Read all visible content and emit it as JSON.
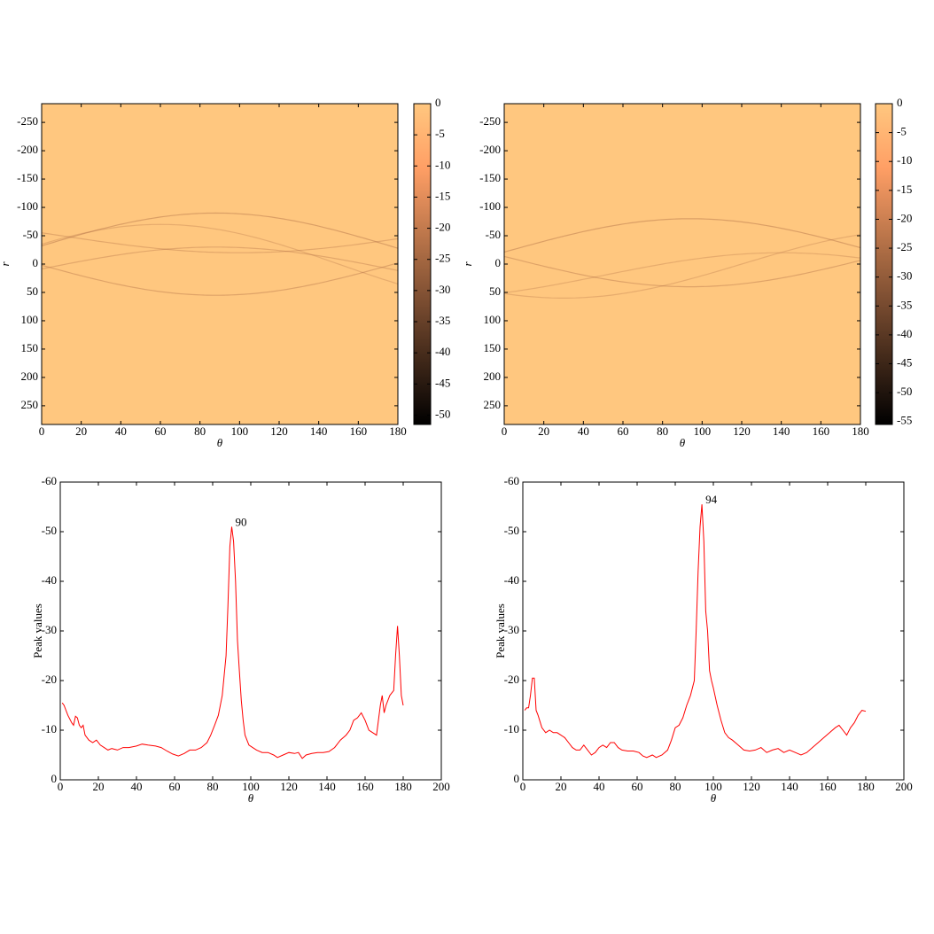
{
  "chart_data": [
    {
      "type": "heatmap",
      "xlabel": "θ",
      "ylabel": "r",
      "colormap": "copper",
      "xlim": [
        0,
        180
      ],
      "xticks": [
        0,
        20,
        40,
        60,
        80,
        100,
        120,
        140,
        160,
        180
      ],
      "ylim": [
        283,
        -283
      ],
      "yticks": [
        -250,
        -200,
        -150,
        -100,
        -50,
        0,
        50,
        100,
        150,
        200,
        250
      ],
      "clim": [
        -51.5,
        0
      ],
      "cticks": [
        0,
        -5,
        -10,
        -15,
        -20,
        -25,
        -30,
        -35,
        -40,
        -45,
        -50
      ]
    },
    {
      "type": "heatmap",
      "xlabel": "θ",
      "ylabel": "r",
      "colormap": "copper",
      "xlim": [
        0,
        180
      ],
      "xticks": [
        0,
        20,
        40,
        60,
        80,
        100,
        120,
        140,
        160,
        180
      ],
      "ylim": [
        283,
        -283
      ],
      "yticks": [
        -250,
        -200,
        -150,
        -100,
        -50,
        0,
        50,
        100,
        150,
        200,
        250
      ],
      "clim": [
        -55.5,
        0
      ],
      "cticks": [
        0,
        -5,
        -10,
        -15,
        -20,
        -25,
        -30,
        -35,
        -40,
        -45,
        -50,
        -55
      ]
    },
    {
      "type": "line",
      "xlabel": "θ",
      "ylabel": "Peak values",
      "xlim": [
        0,
        200
      ],
      "xticks": [
        0,
        20,
        40,
        60,
        80,
        100,
        120,
        140,
        160,
        180,
        200
      ],
      "ylim": [
        0,
        -60
      ],
      "yticks": [
        0,
        -10,
        -20,
        -30,
        -40,
        -50,
        -60
      ],
      "x": [
        1,
        2,
        4,
        6,
        7,
        8,
        9,
        10,
        11,
        12,
        13,
        15,
        17,
        19,
        21,
        23,
        25,
        27,
        30,
        33,
        36,
        40,
        43,
        46,
        50,
        53,
        56,
        59,
        62,
        65,
        68,
        71,
        74,
        77,
        79,
        81,
        83,
        85,
        87,
        88,
        89,
        90,
        91,
        92,
        93,
        94,
        95,
        96,
        97,
        99,
        101,
        103,
        106,
        109,
        112,
        114,
        117,
        120,
        123,
        125,
        127,
        129,
        132,
        135,
        138,
        141,
        144,
        147,
        150,
        152,
        154,
        156,
        158,
        160,
        162,
        164,
        166,
        168,
        169,
        170,
        171,
        173,
        175,
        176,
        177,
        178,
        179,
        180
      ],
      "series": [
        {
          "color": "#ff0000",
          "values": [
            -15.5,
            -15,
            -13,
            -11.5,
            -11,
            -12.8,
            -12.5,
            -11,
            -10.5,
            -11,
            -9,
            -8,
            -7.5,
            -8,
            -7,
            -6.5,
            -6,
            -6.3,
            -6,
            -6.5,
            -6.5,
            -6.8,
            -7.2,
            -7,
            -6.8,
            -6.5,
            -5.8,
            -5.2,
            -4.8,
            -5.3,
            -6,
            -6,
            -6.5,
            -7.5,
            -9,
            -11,
            -13,
            -17,
            -25,
            -35,
            -47,
            -51,
            -48,
            -40,
            -28,
            -22,
            -16,
            -12,
            -9,
            -7,
            -6.5,
            -6,
            -5.5,
            -5.5,
            -5,
            -4.5,
            -5,
            -5.5,
            -5.3,
            -5.5,
            -4.3,
            -5,
            -5.3,
            -5.5,
            -5.5,
            -5.7,
            -6.5,
            -8,
            -9,
            -10,
            -12,
            -12.5,
            -13.5,
            -12,
            -10,
            -9.5,
            -9,
            -15,
            -17,
            -13.5,
            -15,
            -17,
            -18,
            -25,
            -31,
            -25,
            -17,
            -15
          ]
        }
      ],
      "annotation": {
        "label": "90",
        "x": 90,
        "y": -51
      }
    },
    {
      "type": "line",
      "xlabel": "θ",
      "ylabel": "Peak values",
      "xlim": [
        0,
        200
      ],
      "xticks": [
        0,
        20,
        40,
        60,
        80,
        100,
        120,
        140,
        160,
        180,
        200
      ],
      "ylim": [
        0,
        -60
      ],
      "yticks": [
        0,
        -10,
        -20,
        -30,
        -40,
        -50,
        -60
      ],
      "x": [
        1,
        2,
        3,
        4,
        5,
        6,
        7,
        8,
        10,
        12,
        14,
        16,
        18,
        20,
        22,
        24,
        26,
        28,
        30,
        32,
        34,
        36,
        38,
        40,
        42,
        44,
        46,
        48,
        50,
        52,
        55,
        58,
        61,
        63,
        65,
        68,
        70,
        73,
        76,
        78,
        80,
        82,
        84,
        86,
        88,
        90,
        91,
        92,
        93,
        94,
        95,
        96,
        97,
        98,
        99,
        100,
        102,
        104,
        106,
        108,
        110,
        113,
        116,
        119,
        122,
        125,
        128,
        131,
        134,
        137,
        140,
        143,
        146,
        149,
        152,
        155,
        158,
        161,
        164,
        166,
        168,
        170,
        172,
        174,
        176,
        178,
        180
      ],
      "series": [
        {
          "color": "#ff0000",
          "values": [
            -14,
            -14.5,
            -14.5,
            -17,
            -20.5,
            -20.5,
            -14,
            -13,
            -10.5,
            -9.5,
            -10,
            -9.5,
            -9.5,
            -9,
            -8.5,
            -7.5,
            -6.5,
            -6,
            -6,
            -7,
            -6,
            -5,
            -5.5,
            -6.5,
            -7,
            -6.5,
            -7.5,
            -7.5,
            -6.5,
            -6,
            -5.8,
            -5.8,
            -5.5,
            -4.8,
            -4.5,
            -5,
            -4.5,
            -5,
            -6,
            -8,
            -10.5,
            -11,
            -12.5,
            -15,
            -17,
            -20,
            -30,
            -42,
            -51,
            -55.5,
            -48,
            -34,
            -30,
            -22,
            -20,
            -18.5,
            -15,
            -12,
            -9.5,
            -8.5,
            -8,
            -7,
            -6,
            -5.8,
            -6,
            -6.5,
            -5.5,
            -6,
            -6.3,
            -5.5,
            -6,
            -5.5,
            -5,
            -5.5,
            -6.5,
            -7.5,
            -8.5,
            -9.5,
            -10.5,
            -11,
            -10,
            -9,
            -10.5,
            -11.5,
            -13,
            -14,
            -13.8
          ]
        }
      ],
      "annotation": {
        "label": "94",
        "x": 94,
        "y": -55.5
      }
    }
  ]
}
